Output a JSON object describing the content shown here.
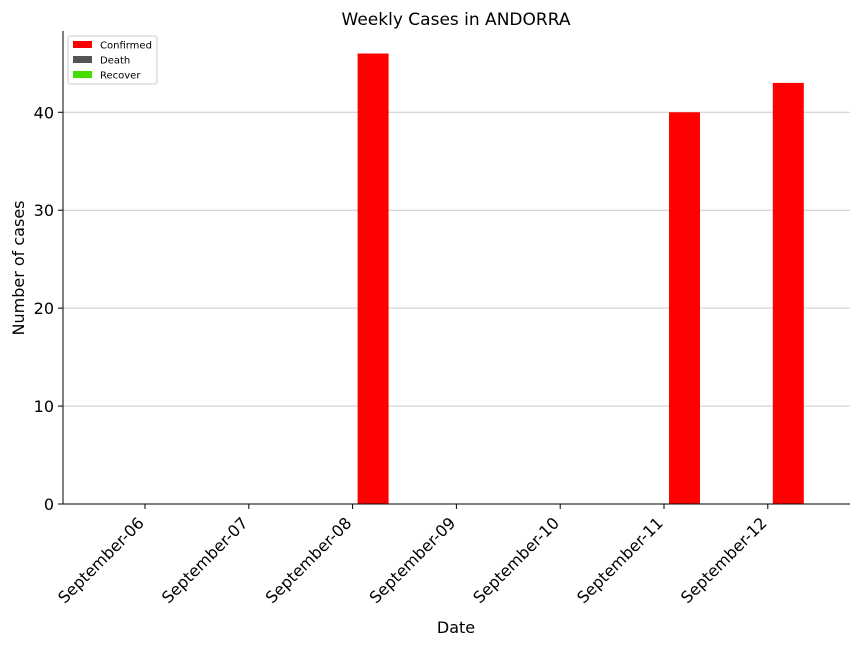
{
  "chart_data": {
    "type": "bar",
    "title": "Weekly Cases in ANDORRA",
    "xlabel": "Date",
    "ylabel": "Number of cases",
    "categories": [
      "September-06",
      "September-07",
      "September-08",
      "September-09",
      "September-10",
      "September-11",
      "September-12"
    ],
    "series": [
      {
        "name": "Confirmed",
        "color": "#ff0000",
        "values": [
          0,
          0,
          46,
          0,
          0,
          40,
          43
        ]
      },
      {
        "name": "Death",
        "color": "#555555",
        "values": [
          0,
          0,
          0,
          0,
          0,
          0,
          0
        ]
      },
      {
        "name": "Recover",
        "color": "#44dd00",
        "values": [
          0,
          0,
          0,
          0,
          0,
          0,
          0
        ]
      }
    ],
    "ylim": [
      0,
      48.3
    ],
    "yticks": [
      0,
      10,
      20,
      30,
      40
    ],
    "grid": "horizontal",
    "legend": "top-left"
  }
}
